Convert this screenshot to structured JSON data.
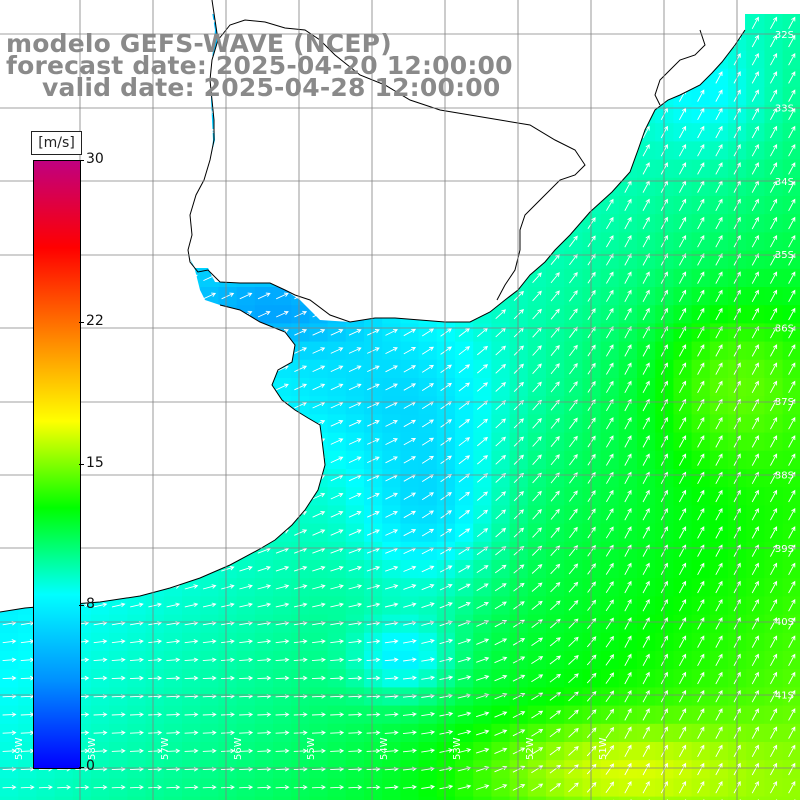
{
  "titles": {
    "line1": "modelo GEFS-WAVE (NCEP)",
    "line2": "forecast date: 2025-04-20 12:00:00",
    "line3": "valid date: 2025-04-28 12:00:00"
  },
  "colorbar": {
    "units": "[m/s]",
    "ticks": [
      {
        "label": "30",
        "value": 30
      },
      {
        "label": "22",
        "value": 22
      },
      {
        "label": "15",
        "value": 15
      },
      {
        "label": "8",
        "value": 8
      },
      {
        "label": "0",
        "value": 0
      }
    ],
    "colors": [
      "#0000ff",
      "#0090ff",
      "#00ffff",
      "#00ff00",
      "#ffff00",
      "#ff8000",
      "#ff0000",
      "#c00080"
    ]
  },
  "axes": {
    "lon_labels": [
      "59W",
      "58W",
      "57W",
      "56W",
      "55W",
      "54W",
      "53W",
      "52W",
      "51W"
    ],
    "lat_labels": [
      "32S",
      "33S",
      "34S",
      "35S",
      "36S",
      "37S",
      "38S",
      "39S",
      "40S",
      "41S"
    ]
  },
  "colors": {
    "land": "#ffffff",
    "coast": "#000000",
    "grid": "#808080",
    "arrow": "#ffffff",
    "title": "#8a8a8a"
  }
}
